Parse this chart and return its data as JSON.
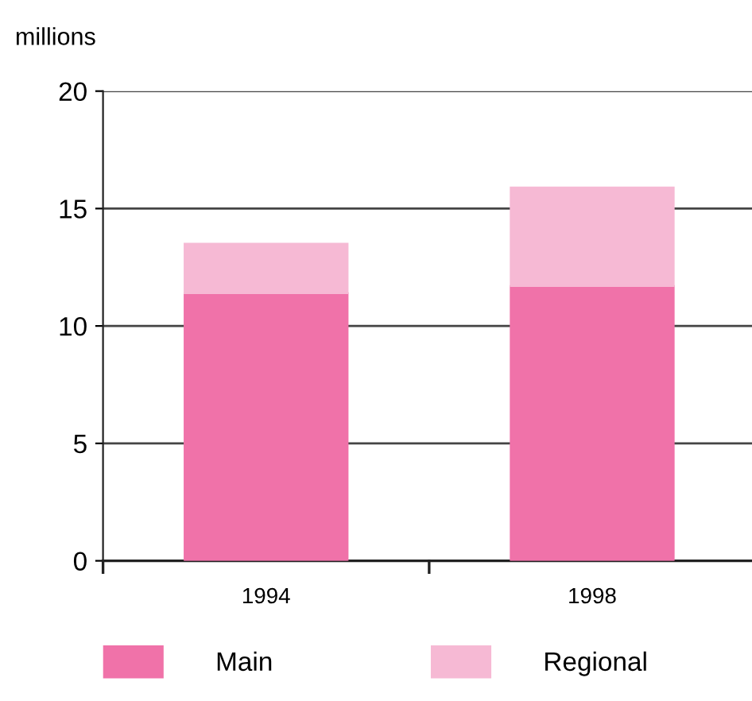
{
  "chart_data": {
    "type": "bar",
    "ylabel": "millions",
    "categories": [
      "1994",
      "1998"
    ],
    "stacked": true,
    "series": [
      {
        "name": "Main",
        "color": "#f072a9",
        "values": [
          11.4,
          11.7
        ]
      },
      {
        "name": "Regional",
        "color": "#f6b9d4",
        "values": [
          2.1,
          4.2
        ]
      }
    ],
    "ylim": [
      0,
      20
    ],
    "yticks": [
      0,
      5,
      10,
      15,
      20
    ],
    "grid": "y",
    "legend": "bottom"
  }
}
